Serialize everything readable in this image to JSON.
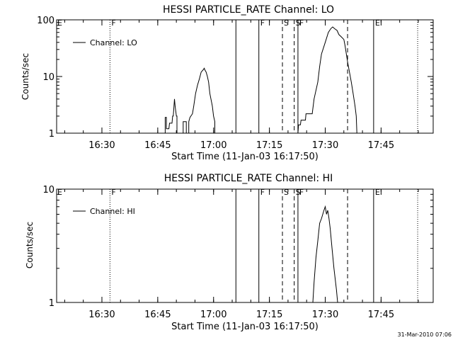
{
  "footer_timestamp": "31-Mar-2010 07:06",
  "chart_data": [
    {
      "type": "line",
      "title": "HESSI PARTICLE_RATE Channel: LO",
      "xlabel": "Start Time (11-Jan-03 16:17:50)",
      "ylabel": "Counts/sec",
      "y_scale": "log",
      "ylim": [
        1,
        100
      ],
      "y_ticks": [
        1,
        10,
        100
      ],
      "y_tick_labels": [
        "1",
        "10",
        "100"
      ],
      "xlim": [
        "16:17:50",
        "17:59:00"
      ],
      "x_ticks": [
        "16:30",
        "16:45",
        "17:00",
        "17:15",
        "17:30",
        "17:45"
      ],
      "legend": {
        "position": "top-left",
        "entries": [
          "Channel: LO"
        ]
      },
      "grid": false,
      "event_markers": [
        {
          "label": "E",
          "time": "16:17:50",
          "style": "solid"
        },
        {
          "label": "F",
          "time": "16:32:10",
          "style": "dotted"
        },
        {
          "label": "",
          "time": "17:06:00",
          "style": "solid"
        },
        {
          "label": "F",
          "time": "17:12:10",
          "style": "solid"
        },
        {
          "label": "S",
          "time": "17:18:30",
          "style": "dashed"
        },
        {
          "label": "S",
          "time": "17:21:40",
          "style": "dashed"
        },
        {
          "label": "F",
          "time": "17:22:40",
          "style": "solid"
        },
        {
          "label": "",
          "time": "17:36:00",
          "style": "dashed"
        },
        {
          "label": "E",
          "time": "17:43:00",
          "style": "solid"
        },
        {
          "label": "",
          "time": "17:54:50",
          "style": "dotted"
        }
      ],
      "series": [
        {
          "name": "Channel: LO",
          "segments": [
            {
              "x": [
                "16:47:00",
                "16:47:00",
                "16:47:20",
                "16:47:20",
                "16:48:00",
                "16:48:10",
                "16:48:50",
                "16:49:00",
                "16:49:10",
                "16:49:30",
                "16:49:40",
                "16:50:00",
                "16:50:10",
                "16:50:10"
              ],
              "y": [
                1,
                1.9,
                1.9,
                1.2,
                1.2,
                1.5,
                1.5,
                2.0,
                2.0,
                4.0,
                3.0,
                2.0,
                2.0,
                1
              ]
            },
            {
              "x": [
                "16:51:50",
                "16:51:50",
                "16:52:40",
                "16:52:40"
              ],
              "y": [
                1,
                1.6,
                1.6,
                1
              ]
            },
            {
              "x": [
                "16:53:20",
                "16:53:20",
                "16:53:40",
                "16:54:20",
                "16:54:40",
                "16:55:10",
                "16:55:40",
                "16:56:10",
                "16:56:40",
                "16:57:10",
                "16:57:30",
                "16:57:40",
                "16:58:00",
                "16:58:20",
                "16:58:40",
                "16:59:00",
                "16:59:40",
                "17:00:00",
                "17:00:20",
                "17:00:20"
              ],
              "y": [
                1,
                1.6,
                1.9,
                2.2,
                3.0,
                5.0,
                7.0,
                9.0,
                12.0,
                13.0,
                14.0,
                13.0,
                12.0,
                10.0,
                8.0,
                5.0,
                3.0,
                2.0,
                1.6,
                1
              ]
            },
            {
              "x": [
                "17:22:40",
                "17:22:50",
                "17:23:20",
                "17:23:30",
                "17:24:00",
                "17:24:40",
                "17:24:50",
                "17:25:30",
                "17:26:30",
                "17:27:00",
                "17:28:00",
                "17:28:30",
                "17:29:00",
                "17:30:00",
                "17:30:50",
                "17:31:30",
                "17:32:00",
                "17:32:30",
                "17:33:10",
                "17:33:40",
                "17:34:20",
                "17:35:00",
                "17:35:20",
                "17:35:40",
                "17:36:00",
                "17:36:30",
                "17:37:00",
                "17:37:30",
                "17:38:00",
                "17:38:20",
                "17:38:30"
              ],
              "y": [
                1.0,
                1.4,
                1.4,
                1.7,
                1.7,
                1.7,
                2.2,
                2.2,
                2.2,
                4.0,
                8.0,
                15.0,
                25.0,
                40.0,
                60.0,
                70.0,
                75.0,
                70.0,
                65.0,
                55.0,
                50.0,
                45.0,
                35.0,
                25.0,
                18.0,
                12.0,
                8.0,
                5.0,
                3.0,
                2.0,
                1.0
              ]
            }
          ]
        }
      ]
    },
    {
      "type": "line",
      "title": "HESSI PARTICLE_RATE Channel: HI",
      "xlabel": "Start Time (11-Jan-03 16:17:50)",
      "ylabel": "Counts/sec",
      "y_scale": "log",
      "ylim": [
        1,
        10
      ],
      "y_ticks": [
        1,
        10
      ],
      "y_tick_labels": [
        "1",
        "10"
      ],
      "xlim": [
        "16:17:50",
        "17:59:00"
      ],
      "x_ticks": [
        "16:30",
        "16:45",
        "17:00",
        "17:15",
        "17:30",
        "17:45"
      ],
      "legend": {
        "position": "top-left",
        "entries": [
          "Channel: HI"
        ]
      },
      "grid": false,
      "event_markers": [
        {
          "label": "E",
          "time": "16:17:50",
          "style": "solid"
        },
        {
          "label": "F",
          "time": "16:32:10",
          "style": "dotted"
        },
        {
          "label": "",
          "time": "17:06:00",
          "style": "solid"
        },
        {
          "label": "F",
          "time": "17:12:10",
          "style": "solid"
        },
        {
          "label": "S",
          "time": "17:18:30",
          "style": "dashed"
        },
        {
          "label": "S",
          "time": "17:21:40",
          "style": "dashed"
        },
        {
          "label": "F",
          "time": "17:22:40",
          "style": "solid"
        },
        {
          "label": "",
          "time": "17:36:00",
          "style": "dashed"
        },
        {
          "label": "E",
          "time": "17:43:00",
          "style": "solid"
        },
        {
          "label": "",
          "time": "17:54:50",
          "style": "dotted"
        }
      ],
      "series": [
        {
          "name": "Channel: HI",
          "segments": [
            {
              "x": [
                "17:26:40",
                "17:27:00",
                "17:27:30",
                "17:28:00",
                "17:28:30",
                "17:29:00",
                "17:29:20",
                "17:29:40",
                "17:30:00",
                "17:30:20",
                "17:30:40",
                "17:31:00",
                "17:31:20",
                "17:31:50",
                "17:32:20",
                "17:33:00",
                "17:33:20"
              ],
              "y": [
                1.0,
                1.5,
                2.5,
                3.5,
                5.0,
                5.5,
                6.0,
                6.5,
                7.0,
                6.0,
                6.5,
                5.5,
                4.5,
                3.0,
                2.0,
                1.3,
                1.0
              ]
            }
          ]
        }
      ]
    }
  ]
}
